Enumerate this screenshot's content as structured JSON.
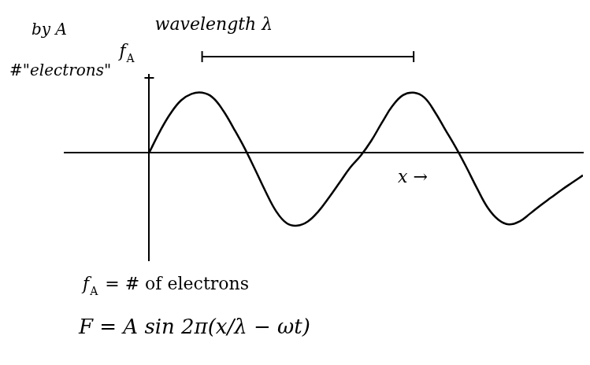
{
  "chart_data": {
    "type": "line",
    "x": [
      0,
      0.05,
      0.1,
      0.15,
      0.2,
      0.25,
      0.3,
      0.35,
      0.4,
      0.45,
      0.5,
      0.55,
      0.6,
      0.65,
      0.7,
      0.75,
      0.8,
      0.85,
      0.9,
      0.95,
      1.0,
      1.05,
      1.1,
      1.15,
      1.2,
      1.25,
      1.3,
      1.35,
      1.4,
      1.45,
      1.5,
      1.55,
      1.6,
      1.65,
      1.7,
      1.75,
      1.8,
      1.85,
      1.9,
      1.95,
      2.0,
      2.05
    ],
    "values": [
      0,
      0.35,
      0.65,
      0.87,
      0.98,
      1.0,
      0.92,
      0.7,
      0.4,
      0.08,
      -0.28,
      -0.65,
      -0.98,
      -1.18,
      -1.22,
      -1.15,
      -0.98,
      -0.75,
      -0.5,
      -0.25,
      -0.05,
      0.2,
      0.5,
      0.78,
      0.96,
      1.0,
      0.92,
      0.68,
      0.38,
      0.08,
      -0.25,
      -0.6,
      -0.92,
      -1.12,
      -1.2,
      -1.15,
      -1.02,
      -0.88,
      -0.75,
      -0.62,
      -0.5,
      -0.38
    ],
    "xlim": [
      -0.4,
      2.05
    ],
    "ylim": [
      -1.8,
      1.3
    ],
    "x_label": "x →",
    "y_label": {
      "main": "f",
      "sub": "A"
    },
    "annotations": [
      {
        "text": "wavelength λ",
        "x_from": 0.25,
        "x_to": 1.25
      },
      {
        "text": "by A"
      },
      {
        "text": "#\"electrons\""
      },
      {
        "main": "f",
        "sub": "A",
        "text": " = # of electrons"
      },
      {
        "text": "F = A sin 2π(x/λ − ωt)"
      }
    ],
    "color": "#000000",
    "line_style": "solid",
    "grid": false,
    "tick_labels": false
  }
}
